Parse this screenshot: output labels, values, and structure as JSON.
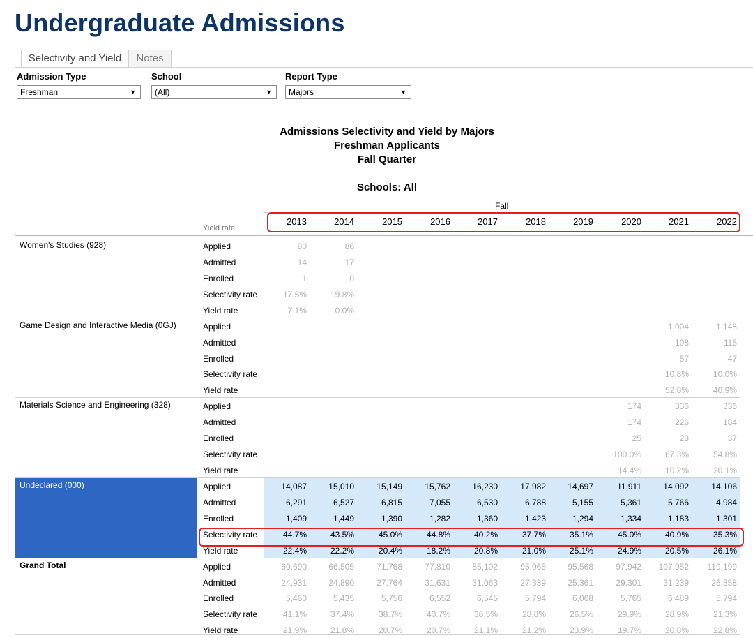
{
  "page": {
    "title": "Undergraduate Admissions"
  },
  "tabs": [
    {
      "label": "Selectivity and Yield",
      "active": true
    },
    {
      "label": "Notes",
      "active": false
    }
  ],
  "filters": {
    "admission_type": {
      "label": "Admission Type",
      "value": "Freshman"
    },
    "school": {
      "label": "School",
      "value": "(All)"
    },
    "report_type": {
      "label": "Report Type",
      "value": "Majors"
    }
  },
  "report": {
    "title_line1": "Admissions Selectivity and Yield by Majors",
    "title_line2": "Freshman Applicants",
    "title_line3": "Fall Quarter",
    "schools_label": "Schools: All",
    "term_header": "Fall",
    "years": [
      "2013",
      "2014",
      "2015",
      "2016",
      "2017",
      "2018",
      "2019",
      "2020",
      "2021",
      "2022"
    ],
    "clipped_row_label": "Yield rate"
  },
  "groups": [
    {
      "name": "Women's Studies (928)",
      "selected": false,
      "rows": [
        {
          "metric": "Applied",
          "values": [
            "80",
            "86",
            "",
            "",
            "",
            "",
            "",
            "",
            "",
            ""
          ]
        },
        {
          "metric": "Admitted",
          "values": [
            "14",
            "17",
            "",
            "",
            "",
            "",
            "",
            "",
            "",
            ""
          ]
        },
        {
          "metric": "Enrolled",
          "values": [
            "1",
            "0",
            "",
            "",
            "",
            "",
            "",
            "",
            "",
            ""
          ]
        },
        {
          "metric": "Selectivity rate",
          "values": [
            "17.5%",
            "19.8%",
            "",
            "",
            "",
            "",
            "",
            "",
            "",
            ""
          ]
        },
        {
          "metric": "Yield rate",
          "values": [
            "7.1%",
            "0.0%",
            "",
            "",
            "",
            "",
            "",
            "",
            "",
            ""
          ]
        }
      ]
    },
    {
      "name": "Game Design and Interactive Media (0GJ)",
      "selected": false,
      "rows": [
        {
          "metric": "Applied",
          "values": [
            "",
            "",
            "",
            "",
            "",
            "",
            "",
            "",
            "1,004",
            "1,148"
          ]
        },
        {
          "metric": "Admitted",
          "values": [
            "",
            "",
            "",
            "",
            "",
            "",
            "",
            "",
            "108",
            "115"
          ]
        },
        {
          "metric": "Enrolled",
          "values": [
            "",
            "",
            "",
            "",
            "",
            "",
            "",
            "",
            "57",
            "47"
          ]
        },
        {
          "metric": "Selectivity rate",
          "values": [
            "",
            "",
            "",
            "",
            "",
            "",
            "",
            "",
            "10.8%",
            "10.0%"
          ]
        },
        {
          "metric": "Yield rate",
          "values": [
            "",
            "",
            "",
            "",
            "",
            "",
            "",
            "",
            "52.8%",
            "40.9%"
          ]
        }
      ]
    },
    {
      "name": "Materials Science and Engineering (328)",
      "selected": false,
      "rows": [
        {
          "metric": "Applied",
          "values": [
            "",
            "",
            "",
            "",
            "",
            "",
            "",
            "174",
            "336",
            "336"
          ]
        },
        {
          "metric": "Admitted",
          "values": [
            "",
            "",
            "",
            "",
            "",
            "",
            "",
            "174",
            "226",
            "184"
          ]
        },
        {
          "metric": "Enrolled",
          "values": [
            "",
            "",
            "",
            "",
            "",
            "",
            "",
            "25",
            "23",
            "37"
          ]
        },
        {
          "metric": "Selectivity rate",
          "values": [
            "",
            "",
            "",
            "",
            "",
            "",
            "",
            "100.0%",
            "67.3%",
            "54.8%"
          ]
        },
        {
          "metric": "Yield rate",
          "values": [
            "",
            "",
            "",
            "",
            "",
            "",
            "",
            "14.4%",
            "10.2%",
            "20.1%"
          ]
        }
      ]
    },
    {
      "name": "Undeclared (000)",
      "selected": true,
      "rows": [
        {
          "metric": "Applied",
          "values": [
            "14,087",
            "15,010",
            "15,149",
            "15,762",
            "16,230",
            "17,982",
            "14,697",
            "11,911",
            "14,092",
            "14,106"
          ]
        },
        {
          "metric": "Admitted",
          "values": [
            "6,291",
            "6,527",
            "6,815",
            "7,055",
            "6,530",
            "6,788",
            "5,155",
            "5,361",
            "5,766",
            "4,984"
          ]
        },
        {
          "metric": "Enrolled",
          "values": [
            "1,409",
            "1,449",
            "1,390",
            "1,282",
            "1,360",
            "1,423",
            "1,294",
            "1,334",
            "1,183",
            "1,301"
          ]
        },
        {
          "metric": "Selectivity rate",
          "values": [
            "44.7%",
            "43.5%",
            "45.0%",
            "44.8%",
            "40.2%",
            "37.7%",
            "35.1%",
            "45.0%",
            "40.9%",
            "35.3%"
          ]
        },
        {
          "metric": "Yield rate",
          "values": [
            "22.4%",
            "22.2%",
            "20.4%",
            "18.2%",
            "20.8%",
            "21.0%",
            "25.1%",
            "24.9%",
            "20.5%",
            "26.1%"
          ]
        }
      ]
    },
    {
      "name": "Grand Total",
      "selected": false,
      "bold": true,
      "rows": [
        {
          "metric": "Applied",
          "values": [
            "60,690",
            "66,505",
            "71,768",
            "77,810",
            "85,102",
            "95,065",
            "95,568",
            "97,942",
            "107,952",
            "119,199"
          ]
        },
        {
          "metric": "Admitted",
          "values": [
            "24,931",
            "24,890",
            "27,764",
            "31,631",
            "31,063",
            "27,339",
            "25,361",
            "29,301",
            "31,239",
            "25,358"
          ]
        },
        {
          "metric": "Enrolled",
          "values": [
            "5,460",
            "5,435",
            "5,756",
            "6,552",
            "6,545",
            "5,794",
            "6,068",
            "5,765",
            "6,489",
            "5,794"
          ]
        },
        {
          "metric": "Selectivity rate",
          "values": [
            "41.1%",
            "37.4%",
            "38.7%",
            "40.7%",
            "36.5%",
            "28.8%",
            "26.5%",
            "29.9%",
            "28.9%",
            "21.3%"
          ]
        },
        {
          "metric": "Yield rate",
          "values": [
            "21.9%",
            "21.8%",
            "20.7%",
            "20.7%",
            "21.1%",
            "21.2%",
            "23.9%",
            "19.7%",
            "20.8%",
            "22.8%"
          ]
        }
      ]
    }
  ],
  "colors": {
    "title": "#0c3466",
    "selected_group_bg": "#2e67c3",
    "selected_cells_bg": "#d6e9f8",
    "highlight_red": "#e0211f"
  }
}
